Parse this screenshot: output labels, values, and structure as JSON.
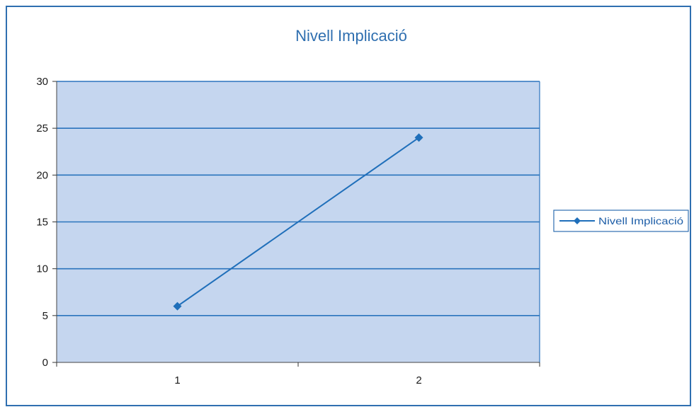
{
  "chart_data": {
    "type": "line",
    "title": "Nivell Implicació",
    "xlabel": "",
    "ylabel": "",
    "categories": [
      "1",
      "2"
    ],
    "series": [
      {
        "name": "Nivell Implicació",
        "values": [
          6,
          24
        ]
      }
    ],
    "ylim": [
      0,
      30
    ],
    "yticks": [
      0,
      5,
      10,
      15,
      20,
      25,
      30
    ],
    "grid": true,
    "legend": "right",
    "colors": {
      "plot_background": "#c5d6ef",
      "line": "#1f6fba",
      "grid": "#2b74bd",
      "frame": "#2f6fb0",
      "title": "#2f6fb0"
    }
  }
}
